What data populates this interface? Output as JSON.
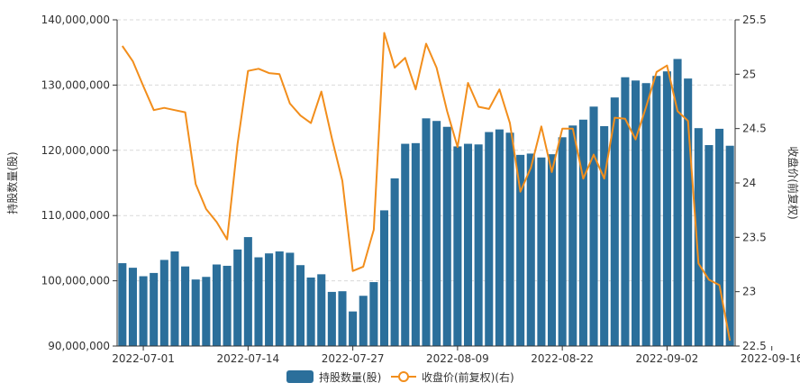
{
  "chart_data": {
    "type": "bar",
    "x_tick_labels": [
      "2022-07-01",
      "2022-07-14",
      "2022-07-27",
      "2022-08-09",
      "2022-08-22",
      "2022-09-02",
      "2022-09-16"
    ],
    "x_tick_indices": [
      2,
      12,
      22,
      32,
      42,
      52,
      62
    ],
    "ylabel_left": "持股数量(股)",
    "ylabel_right": "收盘价(前复权)",
    "ylim_left": [
      90000000,
      140000000
    ],
    "ylim_right": [
      22.5,
      25.5
    ],
    "yticks_left": [
      "90,000,000",
      "100,000,000",
      "110,000,000",
      "120,000,000",
      "130,000,000",
      "140,000,000"
    ],
    "yticks_right": [
      "22.5",
      "23",
      "23.5",
      "24",
      "24.5",
      "25",
      "25.5"
    ],
    "grid": true,
    "legend_position": "bottom-center",
    "series": [
      {
        "name": "持股数量(股)",
        "type": "bar",
        "axis": "left",
        "color": "#2b6f9b",
        "values": [
          102700000,
          102000000,
          100700000,
          101200000,
          103200000,
          104500000,
          102200000,
          100200000,
          100600000,
          102500000,
          102300000,
          104800000,
          106700000,
          103600000,
          104200000,
          104500000,
          104300000,
          102400000,
          100500000,
          101000000,
          98300000,
          98400000,
          95300000,
          97700000,
          99800000,
          110800000,
          115700000,
          121000000,
          121100000,
          124900000,
          124500000,
          123600000,
          120600000,
          121000000,
          120900000,
          122800000,
          123200000,
          122700000,
          119300000,
          119500000,
          118900000,
          119400000,
          122000000,
          123800000,
          124700000,
          126700000,
          123700000,
          128100000,
          131200000,
          130700000,
          130300000,
          131400000,
          132100000,
          134000000,
          131000000,
          123400000,
          120800000,
          123300000,
          120700000
        ]
      },
      {
        "name": "收盘价(前复权)(右)",
        "type": "line",
        "axis": "right",
        "color": "#f28e1c",
        "values": [
          25.26,
          25.12,
          24.89,
          24.67,
          24.69,
          24.67,
          24.65,
          23.99,
          23.76,
          23.64,
          23.48,
          24.36,
          25.03,
          25.05,
          25.01,
          25.0,
          24.73,
          24.62,
          24.55,
          24.84,
          24.41,
          24.02,
          23.19,
          23.23,
          23.57,
          25.38,
          25.06,
          25.15,
          24.86,
          25.28,
          25.06,
          24.66,
          24.33,
          24.92,
          24.7,
          24.68,
          24.86,
          24.55,
          23.92,
          24.14,
          24.52,
          24.1,
          24.5,
          24.5,
          24.04,
          24.26,
          24.04,
          24.6,
          24.59,
          24.4,
          24.7,
          25.02,
          25.08,
          24.66,
          24.57,
          23.26,
          23.11,
          23.06,
          22.55
        ]
      }
    ]
  }
}
